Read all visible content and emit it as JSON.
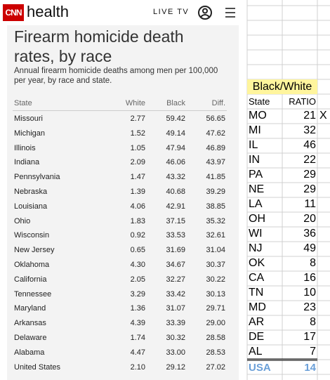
{
  "header": {
    "logo": "CNN",
    "section": "health",
    "live": "LIVE TV"
  },
  "article": {
    "title": "Firearm homicide death rates, by race",
    "subtitle": "Annual firearm homicide deaths among men per 100,000 per year, by race and state.",
    "table": {
      "columns": [
        "State",
        "White",
        "Black",
        "Diff."
      ],
      "rows": [
        [
          "Missouri",
          "2.77",
          "59.42",
          "56.65"
        ],
        [
          "Michigan",
          "1.52",
          "49.14",
          "47.62"
        ],
        [
          "Illinois",
          "1.05",
          "47.94",
          "46.89"
        ],
        [
          "Indiana",
          "2.09",
          "46.06",
          "43.97"
        ],
        [
          "Pennsylvania",
          "1.47",
          "43.32",
          "41.85"
        ],
        [
          "Nebraska",
          "1.39",
          "40.68",
          "39.29"
        ],
        [
          "Louisiana",
          "4.06",
          "42.91",
          "38.85"
        ],
        [
          "Ohio",
          "1.83",
          "37.15",
          "35.32"
        ],
        [
          "Wisconsin",
          "0.92",
          "33.53",
          "32.61"
        ],
        [
          "New Jersey",
          "0.65",
          "31.69",
          "31.04"
        ],
        [
          "Oklahoma",
          "4.30",
          "34.67",
          "30.37"
        ],
        [
          "California",
          "2.05",
          "32.27",
          "30.22"
        ],
        [
          "Tennessee",
          "3.29",
          "33.42",
          "30.13"
        ],
        [
          "Maryland",
          "1.36",
          "31.07",
          "29.71"
        ],
        [
          "Arkansas",
          "4.39",
          "33.39",
          "29.00"
        ],
        [
          "Delaware",
          "1.74",
          "30.32",
          "28.58"
        ],
        [
          "Alabama",
          "4.47",
          "33.00",
          "28.53"
        ],
        [
          "United States",
          "2.10",
          "29.12",
          "27.02"
        ]
      ]
    }
  },
  "sheet": {
    "title": "Black/White",
    "columns": [
      "State",
      "RATIO"
    ],
    "rows": [
      [
        "MO",
        21
      ],
      [
        "MI",
        32
      ],
      [
        "IL",
        46
      ],
      [
        "IN",
        22
      ],
      [
        "PA",
        29
      ],
      [
        "NE",
        29
      ],
      [
        "LA",
        11
      ],
      [
        "OH",
        20
      ],
      [
        "WI",
        36
      ],
      [
        "NJ",
        49
      ],
      [
        "OK",
        8
      ],
      [
        "CA",
        16
      ],
      [
        "TN",
        10
      ],
      [
        "MD",
        23
      ],
      [
        "AR",
        8
      ],
      [
        "DE",
        17
      ],
      [
        "AL",
        7
      ]
    ],
    "marker": "X",
    "total": [
      "USA",
      14
    ]
  }
}
